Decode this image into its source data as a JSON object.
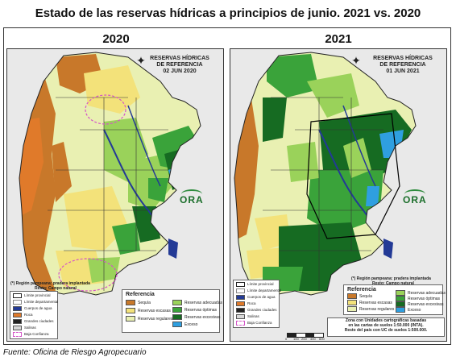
{
  "title": "Estado de las reservas hídricas a principios de junio. 2021 vs. 2020",
  "source": "Fuente: Oficina de Riesgo Agropecuario",
  "colors": {
    "sequia": "#c8782a",
    "reservas_escasas": "#f3e27a",
    "reservas_regulares": "#e9f0b2",
    "reservas_adecuadas": "#9ad25a",
    "reservas_optimas": "#3aa33a",
    "reservas_excesivas": "#166b22",
    "exceso": "#2f9fe0",
    "roca": "#e07a2a",
    "salinas": "#d8d8d8",
    "cuerpos_agua": "#233a96"
  },
  "maps": [
    {
      "year": "2020",
      "map_title": [
        "RESERVAS HÍDRICAS",
        "DE REFERENCIA",
        "02 JUN 2020"
      ],
      "note": [
        "(*) Región pampeana: pradera implantada",
        "Resto: Campo natural"
      ],
      "layers": [
        "Límite provincial",
        "Límite departamental",
        "Cuerpos de agua",
        "Roca",
        "Grandes ciudades",
        "Salinas",
        "Baja Confianza"
      ],
      "legend_title": "Referencia",
      "legend_left": [
        "Sequía",
        "Reservas escasas",
        "Reservas regulares"
      ],
      "legend_right": [
        "Reservas adecuadas",
        "Reservas óptimas",
        "Reservas excesivas",
        "Exceso"
      ],
      "logo": "ORA"
    },
    {
      "year": "2021",
      "map_title": [
        "RESERVAS HÍDRICAS",
        "DE REFERENCIA",
        "01 JUN 2021"
      ],
      "note": [
        "(*) Región pampeana: pradera implantada",
        "Resto: Campo natural"
      ],
      "layers": [
        "Límite provincial",
        "Límite departamental",
        "Cuerpos de agua",
        "Roca",
        "Grandes ciudades",
        "Salinas",
        "Baja Confianza"
      ],
      "legend_title": "Referencia",
      "legend_left": [
        "Sequía",
        "Reservas escasas",
        "Reservas regulares"
      ],
      "legend_right": [
        "Reservas adecuadas",
        "Reservas óptimas",
        "Reservas excesivas",
        "Exceso"
      ],
      "soil_note": [
        "Zona con Unidades cartográficas basadas",
        "en las cartas de suelos 1:50.000 (INTA).",
        "Resto del país con UC de suelos 1:500.000."
      ],
      "scale_labels": [
        "0",
        "100",
        "200",
        "400",
        "600"
      ],
      "logo": "ORA"
    }
  ]
}
